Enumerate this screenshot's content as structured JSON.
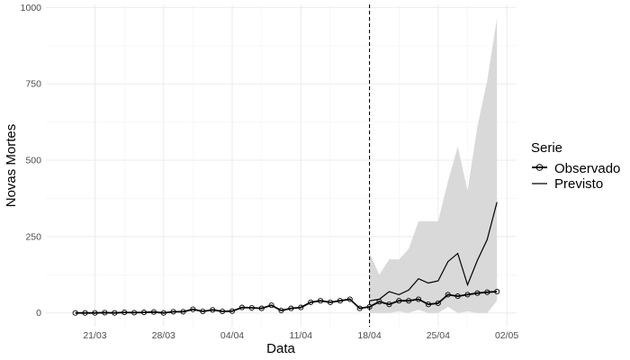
{
  "chart_data": {
    "type": "line",
    "xlabel": "Data",
    "ylabel": "Novas Mortes",
    "ylim": [
      -45,
      1010
    ],
    "xlim": [
      "2020-03-16",
      "2020-05-03"
    ],
    "yticks": [
      0,
      250,
      500,
      750,
      1000
    ],
    "ytick_labels": [
      "0",
      "250",
      "500",
      "750",
      "1000"
    ],
    "xticks": [
      "2020-03-21",
      "2020-03-28",
      "2020-04-04",
      "2020-04-11",
      "2020-04-18",
      "2020-04-25",
      "2020-05-02"
    ],
    "xtick_labels": [
      "21/03",
      "28/03",
      "04/04",
      "11/04",
      "18/04",
      "25/04",
      "02/05"
    ],
    "grid": true,
    "legend": {
      "title": "Serie",
      "placement": "right"
    },
    "vline": "2020-04-18",
    "series": [
      {
        "name": "Observado",
        "marker": "open-circle",
        "x": [
          "2020-03-19",
          "2020-03-20",
          "2020-03-21",
          "2020-03-22",
          "2020-03-23",
          "2020-03-24",
          "2020-03-25",
          "2020-03-26",
          "2020-03-27",
          "2020-03-28",
          "2020-03-29",
          "2020-03-30",
          "2020-03-31",
          "2020-04-01",
          "2020-04-02",
          "2020-04-03",
          "2020-04-04",
          "2020-04-05",
          "2020-04-06",
          "2020-04-07",
          "2020-04-08",
          "2020-04-09",
          "2020-04-10",
          "2020-04-11",
          "2020-04-12",
          "2020-04-13",
          "2020-04-14",
          "2020-04-15",
          "2020-04-16",
          "2020-04-17",
          "2020-04-18",
          "2020-04-19",
          "2020-04-20",
          "2020-04-21",
          "2020-04-22",
          "2020-04-23",
          "2020-04-24",
          "2020-04-25",
          "2020-04-26",
          "2020-04-27",
          "2020-04-28",
          "2020-04-29",
          "2020-04-30",
          "2020-05-01"
        ],
        "values": [
          0,
          0,
          0,
          1,
          0,
          2,
          1,
          2,
          3,
          0,
          4,
          4,
          12,
          5,
          10,
          5,
          6,
          18,
          17,
          15,
          25,
          8,
          15,
          18,
          35,
          40,
          35,
          40,
          45,
          15,
          20,
          37,
          28,
          40,
          40,
          45,
          28,
          32,
          60,
          55,
          60,
          65,
          68,
          70
        ],
        "color": "#000000"
      },
      {
        "name": "Previsto",
        "x": [
          "2020-04-18",
          "2020-04-19",
          "2020-04-20",
          "2020-04-21",
          "2020-04-22",
          "2020-04-23",
          "2020-04-24",
          "2020-04-25",
          "2020-04-26",
          "2020-04-27",
          "2020-04-28",
          "2020-04-29",
          "2020-04-30",
          "2020-05-01"
        ],
        "values": [
          40,
          45,
          70,
          60,
          75,
          112,
          98,
          105,
          168,
          195,
          92,
          172,
          240,
          363
        ],
        "color": "#000000"
      }
    ],
    "band": {
      "x": [
        "2020-04-18",
        "2020-04-19",
        "2020-04-20",
        "2020-04-21",
        "2020-04-22",
        "2020-04-23",
        "2020-04-24",
        "2020-04-25",
        "2020-04-26",
        "2020-04-27",
        "2020-04-28",
        "2020-04-29",
        "2020-04-30",
        "2020-05-01"
      ],
      "lower": [
        0,
        0,
        0,
        5,
        0,
        10,
        0,
        0,
        20,
        0,
        5,
        0,
        0,
        40
      ],
      "upper": [
        195,
        125,
        175,
        175,
        210,
        300,
        300,
        300,
        430,
        545,
        400,
        610,
        760,
        965
      ],
      "color": "#d9d9d9"
    }
  }
}
